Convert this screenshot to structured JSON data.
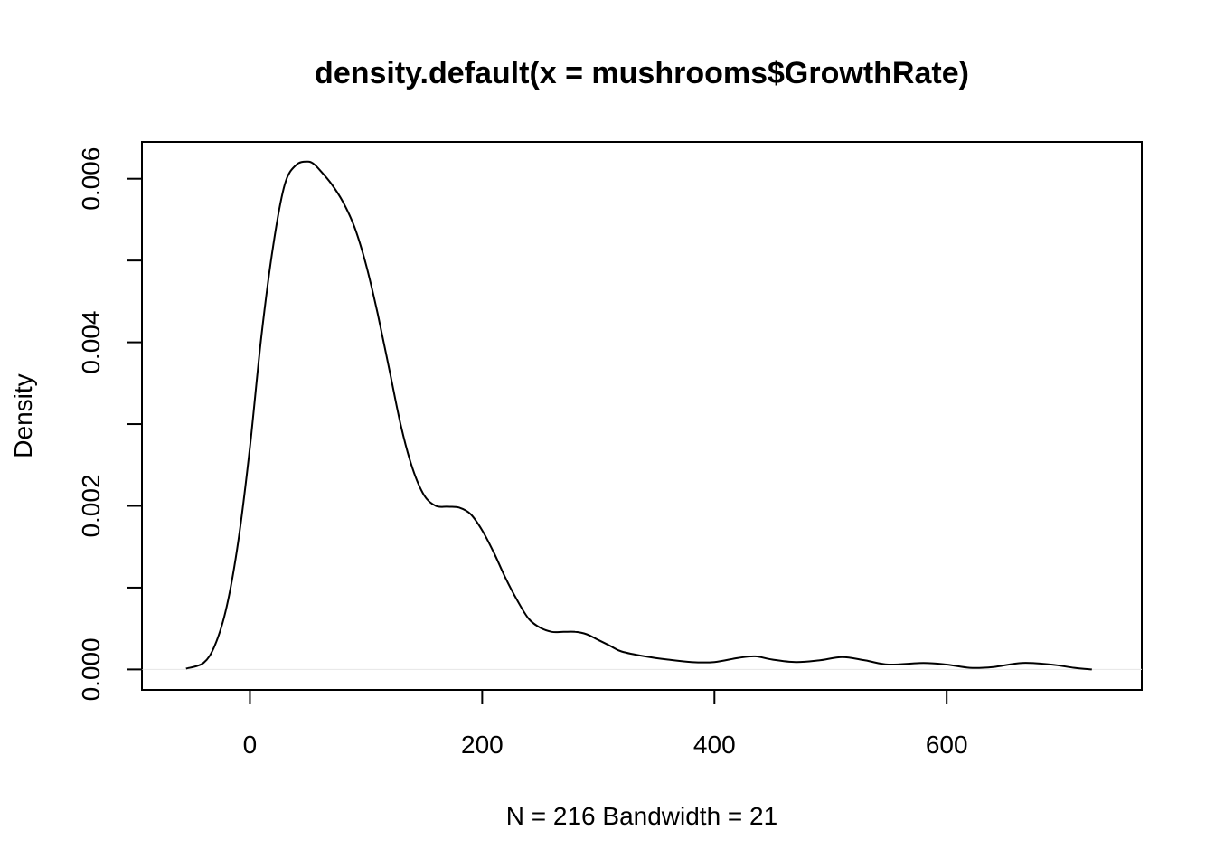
{
  "chart_data": {
    "type": "line",
    "title": "density.default(x = mushrooms$GrowthRate)",
    "xlabel": "N = 216   Bandwidth = 21",
    "ylabel": "Density",
    "xlim": [
      -93,
      768
    ],
    "ylim": [
      -0.00025,
      0.00645
    ],
    "xticks": [
      0,
      200,
      400,
      600
    ],
    "xtick_labels": [
      "0",
      "200",
      "400",
      "600"
    ],
    "yticks": [
      0,
      0.001,
      0.002,
      0.003,
      0.004,
      0.005,
      0.006
    ],
    "ytick_labels": [
      "0.000",
      "",
      "0.002",
      "",
      "0.004",
      "",
      "0.006"
    ],
    "grid": false,
    "legend": "none",
    "line_color": "#000000",
    "baseline_color": "#e6e6e6",
    "series": [
      {
        "x": [
          -55,
          -40,
          -30,
          -20,
          -10,
          0,
          10,
          20,
          30,
          40,
          50,
          55,
          60,
          70,
          80,
          90,
          100,
          110,
          120,
          130,
          140,
          150,
          160,
          170,
          180,
          190,
          200,
          210,
          220,
          230,
          240,
          250,
          260,
          270,
          280,
          290,
          300,
          310,
          320,
          340,
          360,
          380,
          400,
          420,
          435,
          450,
          470,
          490,
          510,
          530,
          550,
          580,
          600,
          620,
          640,
          665,
          690,
          710,
          725
        ],
        "y": [
          1e-05,
          8e-05,
          0.0003,
          0.00077,
          0.00157,
          0.00272,
          0.00409,
          0.00518,
          0.00593,
          0.00617,
          0.00621,
          0.00618,
          0.00611,
          0.00594,
          0.00572,
          0.00541,
          0.00495,
          0.00435,
          0.00367,
          0.00298,
          0.00246,
          0.00213,
          0.002,
          0.00199,
          0.00198,
          0.0019,
          0.0017,
          0.00143,
          0.00112,
          0.00085,
          0.00062,
          0.00051,
          0.00046,
          0.00046,
          0.00046,
          0.00043,
          0.00036,
          0.00029,
          0.00022,
          0.00016,
          0.00012,
          9e-05,
          9e-05,
          0.00014,
          0.00016,
          0.00012,
          9e-05,
          0.00011,
          0.00015,
          0.00011,
          6e-05,
          8e-05,
          6e-05,
          2e-05,
          3e-05,
          8e-05,
          6e-05,
          2e-05,
          0.0
        ]
      }
    ]
  }
}
